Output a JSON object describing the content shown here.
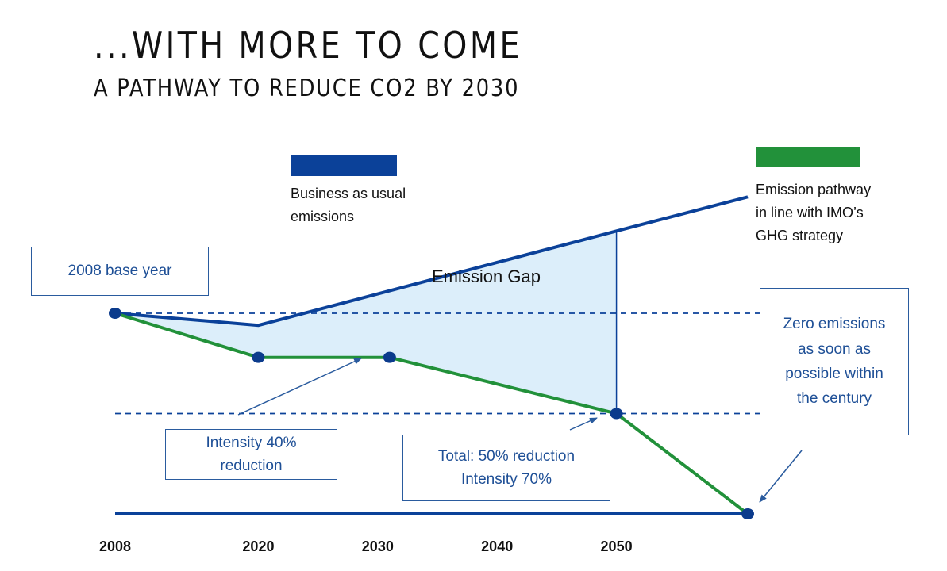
{
  "title": "...WITH MORE TO COME",
  "subtitle": "A PATHWAY TO REDUCE CO2 BY 2030",
  "colors": {
    "bau": "#0b4199",
    "pathway": "#22913a",
    "gap_fill": "#dceefa",
    "callout_text": "#1e4f96",
    "dot": "#0b3b8c"
  },
  "legend": {
    "bau": {
      "line1": "Business as usual",
      "line2": "emissions"
    },
    "pathway": {
      "line1": "Emission pathway",
      "line2": "in line with IMO’s",
      "line3": "GHG strategy"
    }
  },
  "gap_label": "Emission Gap",
  "callouts": {
    "base_year": "2008 base year",
    "intensity40": {
      "line1": "Intensity 40%",
      "line2": "reduction"
    },
    "total50": {
      "line1": "Total: 50% reduction",
      "line2": "Intensity 70%"
    },
    "zero": {
      "line1": "Zero emissions",
      "line2": "as soon as",
      "line3": "possible within",
      "line4": "the century"
    }
  },
  "chart_data": {
    "type": "line",
    "title": "A PATHWAY TO REDUCE CO2 BY 2030",
    "xlabel": "",
    "ylabel": "",
    "x_ticks": [
      "2008",
      "2020",
      "2030",
      "2040",
      "2050"
    ],
    "xlim": [
      2008,
      2061
    ],
    "ylim": [
      0,
      145
    ],
    "grid": false,
    "reference_lines": [
      {
        "y": 100,
        "style": "dashed",
        "meaning": "2008 base level"
      },
      {
        "y": 50,
        "style": "dashed",
        "meaning": "50% reduction"
      }
    ],
    "series": [
      {
        "name": "Business as usual emissions",
        "x": [
          2008,
          2020,
          2050,
          2061
        ],
        "y": [
          100,
          94,
          141,
          158
        ]
      },
      {
        "name": "Emission pathway in line with IMO’s GHG strategy",
        "x": [
          2008,
          2020,
          2031,
          2050,
          2061
        ],
        "y": [
          100,
          78,
          78,
          50,
          0
        ],
        "markers_at": [
          2008,
          2020,
          2031,
          2050,
          2061
        ]
      }
    ],
    "annotations": [
      "Emission Gap",
      "2008 base year",
      "Intensity 40% reduction",
      "Total: 50% reduction Intensity 70%",
      "Zero emissions as soon as possible within the century"
    ]
  }
}
